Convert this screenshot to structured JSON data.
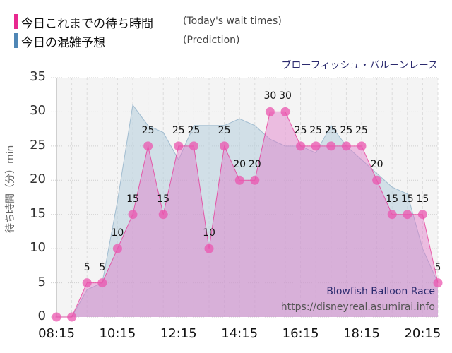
{
  "legend": [
    {
      "label_jp": "今日これまでの待ち時間",
      "label_en": "(Today's wait times)",
      "color": "#e8288f"
    },
    {
      "label_jp": "今日の混雑予想",
      "label_en": "(Prediction)",
      "color": "#4f86b5"
    }
  ],
  "ride_name_jp": "ブローフィッシュ・バルーンレース",
  "ride_name_en": "Blowfish Balloon Race",
  "source_url": "https://disneyreal.asumirai.info",
  "chart_data": {
    "type": "area",
    "title": "ブローフィッシュ・バルーンレース",
    "xlabel": "",
    "ylabel": "待ち時間（分）min",
    "ylim": [
      0,
      35
    ],
    "yticks": [
      0,
      5,
      10,
      15,
      20,
      25,
      30,
      35
    ],
    "xtick_labels": [
      "08:15",
      "10:15",
      "12:15",
      "14:15",
      "16:15",
      "18:15",
      "20:15"
    ],
    "grid": true,
    "legend_position": "top-left",
    "x": [
      "08:15",
      "08:45",
      "09:15",
      "09:45",
      "10:15",
      "10:45",
      "11:15",
      "11:45",
      "12:15",
      "12:45",
      "13:15",
      "13:45",
      "14:15",
      "14:45",
      "15:15",
      "15:45",
      "16:15",
      "16:45",
      "17:15",
      "17:45",
      "18:15",
      "18:45",
      "19:15",
      "19:45",
      "20:15",
      "20:45"
    ],
    "series": [
      {
        "name": "今日これまでの待ち時間 (Today's wait times)",
        "color": "#e8288f",
        "values": [
          0,
          0,
          5,
          5,
          10,
          15,
          25,
          15,
          25,
          25,
          10,
          25,
          20,
          20,
          30,
          30,
          25,
          25,
          25,
          25,
          25,
          20,
          15,
          15,
          15,
          5
        ],
        "data_labels": true
      },
      {
        "name": "今日の混雑予想 (Prediction)",
        "color": "#4f86b5",
        "values": [
          0,
          0,
          4,
          5,
          17,
          31,
          28,
          27,
          23,
          28,
          28,
          28,
          29,
          28,
          26,
          25,
          25,
          24,
          28,
          25,
          23,
          21,
          19,
          18,
          10,
          5
        ]
      }
    ]
  }
}
